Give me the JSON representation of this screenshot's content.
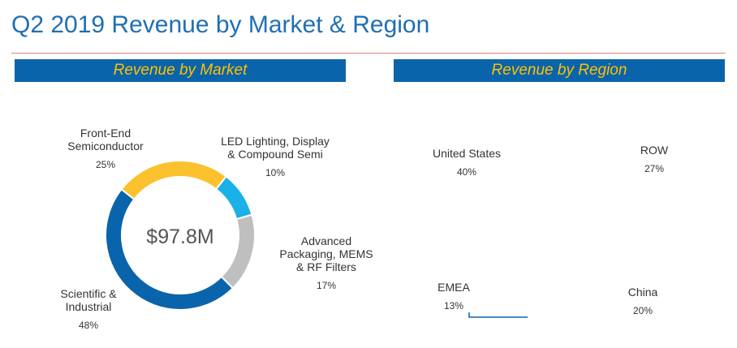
{
  "header": {
    "title": "Q2 2019 Revenue by Market & Region"
  },
  "colors": {
    "title": "#1f6fb4",
    "header_bg": "#0a64ab",
    "header_text": "#ffc000",
    "yellow": "#fcc22e",
    "cyan": "#1ab0e8",
    "gray": "#bfbfbf",
    "blue": "#0a64ab"
  },
  "chart_data": [
    {
      "type": "pie",
      "variant": "donut",
      "title": "Revenue by Market",
      "center_label": "$97.8M",
      "categories": [
        "Front-End Semiconductor",
        "LED Lighting, Display & Compound Semi",
        "Advanced Packaging, MEMS & RF Filters",
        "Scientific & Industrial"
      ],
      "label_lines": [
        [
          "Front-End",
          "Semiconductor"
        ],
        [
          "LED Lighting, Display",
          "& Compound Semi"
        ],
        [
          "Advanced",
          "Packaging, MEMS",
          "& RF Filters"
        ],
        [
          "Scientific &",
          "Industrial"
        ]
      ],
      "values": [
        25,
        10,
        17,
        48
      ],
      "value_labels": [
        "25%",
        "10%",
        "17%",
        "48%"
      ],
      "colors": [
        "#fcc22e",
        "#1ab0e8",
        "#bfbfbf",
        "#0a64ab"
      ]
    },
    {
      "type": "pie",
      "title": "Revenue by Region",
      "categories": [
        "United States",
        "ROW",
        "China",
        "EMEA"
      ],
      "label_lines": [
        [
          "United States"
        ],
        [
          "ROW"
        ],
        [
          "China"
        ],
        [
          "EMEA"
        ]
      ],
      "values": [
        40,
        27,
        20,
        13
      ],
      "value_labels": [
        "40%",
        "27%",
        "20%",
        "13%"
      ],
      "colors": [
        "#fcc22e",
        "#1ab0e8",
        "#bfbfbf",
        "#0a64ab"
      ]
    }
  ]
}
